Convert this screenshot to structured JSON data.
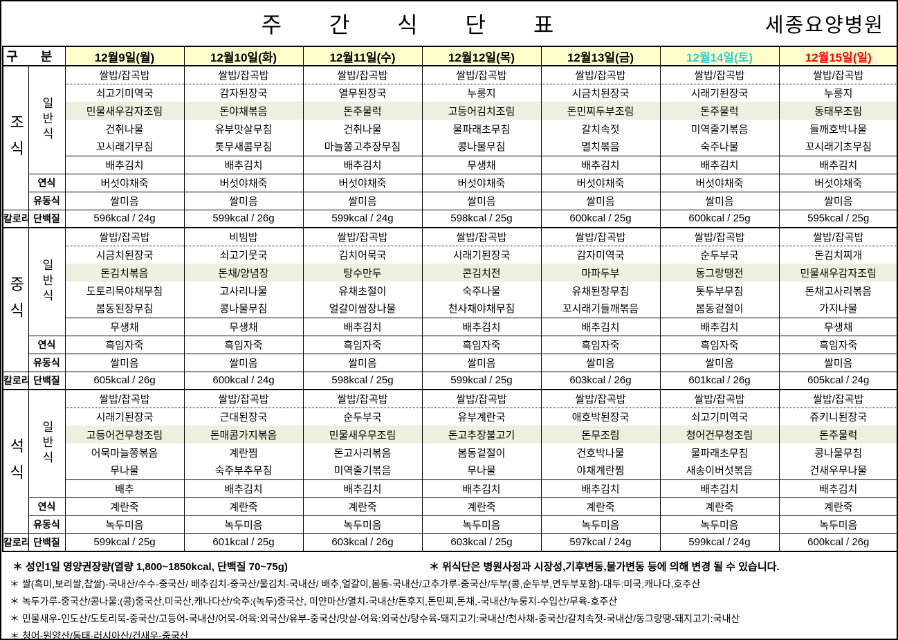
{
  "page": {
    "title": "주 간 식 단 표",
    "hospital": "세종요양병원"
  },
  "colors": {
    "header_bg": "#ffffcc",
    "highlight_bg": "#ebf1de",
    "weekday_text": "#000000",
    "saturday_text": "#33cccc",
    "sunday_text": "#ff0000"
  },
  "header": {
    "gubun": "구 분",
    "days": [
      {
        "label": "12월9일(월)",
        "color": "#000000"
      },
      {
        "label": "12월10일(화)",
        "color": "#000000"
      },
      {
        "label": "12월11일(수)",
        "color": "#000000"
      },
      {
        "label": "12월12일(목)",
        "color": "#000000"
      },
      {
        "label": "12월13일(금)",
        "color": "#000000"
      },
      {
        "label": "12월14일(토)",
        "color": "#33cccc"
      },
      {
        "label": "12월15일(일)",
        "color": "#ff0000"
      }
    ]
  },
  "row_labels": {
    "regular": "일반식",
    "soft": "연식",
    "liquid": "유동식",
    "calorie": "칼로리",
    "protein": "단백질"
  },
  "sections": [
    {
      "meal": "조식",
      "regular": [
        [
          "쌀밥/잡곡밥",
          "쌀밥/잡곡밥",
          "쌀밥/잡곡밥",
          "쌀밥/잡곡밥",
          "쌀밥/잡곡밥",
          "쌀밥/잡곡밥",
          "쌀밥/잡곡밥"
        ],
        [
          "쇠고기미역국",
          "감자된장국",
          "열무된장국",
          "누룽지",
          "시금치된장국",
          "시래기된장국",
          "누룽지"
        ],
        [
          "민물새우감자조림",
          "돈야채볶음",
          "돈주물럭",
          "고등어김치조림",
          "돈민찌두부조림",
          "돈주물럭",
          "동태무조림"
        ],
        [
          "건취나물",
          "유부맛살무침",
          "건취나물",
          "물파래초무침",
          "갈치속젓",
          "미역줄기볶음",
          "들깨호박나물"
        ],
        [
          "꼬시래기무침",
          "톳무새콤무침",
          "마늘쫑고추장무침",
          "콩나물무침",
          "멸치볶음",
          "숙주나물",
          "꼬시래기초무침"
        ],
        [
          "배추김치",
          "배추김치",
          "배추김치",
          "무생채",
          "배추김치",
          "배추김치",
          "배추김치"
        ]
      ],
      "soft": [
        "버섯야채죽",
        "버섯야채죽",
        "버섯야채죽",
        "버섯야채죽",
        "버섯야채죽",
        "버섯야채죽",
        "버섯야채죽"
      ],
      "liquid": [
        "쌀미음",
        "쌀미음",
        "쌀미음",
        "쌀미음",
        "쌀미음",
        "쌀미음",
        "쌀미음"
      ],
      "nutrition": [
        "596kcal / 24g",
        "599kcal / 26g",
        "599kcal / 24g",
        "598kcal / 25g",
        "600kcal / 25g",
        "600kcal / 25g",
        "595kcal / 25g"
      ]
    },
    {
      "meal": "중식",
      "regular": [
        [
          "쌀밥/잡곡밥",
          "비빔밥",
          "쌀밥/잡곡밥",
          "쌀밥/잡곡밥",
          "쌀밥/잡곡밥",
          "쌀밥/잡곡밥",
          "쌀밥/잡곡밥"
        ],
        [
          "시금치된장국",
          "쇠고기뭇국",
          "김치어묵국",
          "시래기된장국",
          "감자미역국",
          "순두부국",
          "돈김치찌개"
        ],
        [
          "돈김치볶음",
          "돈채/양념장",
          "탕수만두",
          "콘김치전",
          "마파두부",
          "동그랑땡전",
          "민물새우감자조림"
        ],
        [
          "도토리묵야채무침",
          "고사리나물",
          "유채초절이",
          "숙주나물",
          "유채된장무침",
          "톳두부무침",
          "돈채고사리볶음"
        ],
        [
          "봄동된장무침",
          "콩나물무침",
          "얼갈이쌈장나물",
          "천사채야채무침",
          "꼬시래기들깨볶음",
          "봄동겉절이",
          "가지나물"
        ],
        [
          "무생채",
          "무생채",
          "배추김치",
          "배추김치",
          "배추김치",
          "배추김치",
          "무생채"
        ]
      ],
      "soft": [
        "흑임자죽",
        "흑임자죽",
        "흑임자죽",
        "흑임자죽",
        "흑임자죽",
        "흑임자죽",
        "흑임자죽"
      ],
      "liquid": [
        "쌀미음",
        "쌀미음",
        "쌀미음",
        "쌀미음",
        "쌀미음",
        "쌀미음",
        "쌀미음"
      ],
      "nutrition": [
        "605kcal / 26g",
        "600kcal / 24g",
        "598kcal / 25g",
        "599kcal / 25g",
        "603kcal / 26g",
        "601kcal / 26g",
        "605kcal / 24g"
      ]
    },
    {
      "meal": "석식",
      "regular": [
        [
          "쌀밥/잡곡밥",
          "쌀밥/잡곡밥",
          "쌀밥/잡곡밥",
          "쌀밥/잡곡밥",
          "쌀밥/잡곡밥",
          "쌀밥/잡곡밥",
          "쌀밥/잡곡밥"
        ],
        [
          "시래기된장국",
          "근대된장국",
          "순두부국",
          "유부계란국",
          "애호박된장국",
          "쇠고기미역국",
          "쥬키니된장국"
        ],
        [
          "고등어건무청조림",
          "돈매콤가지볶음",
          "민물새우무조림",
          "돈고추장불고기",
          "돈무조림",
          "청어건무청조림",
          "돈주물럭"
        ],
        [
          "어묵마늘쫑볶음",
          "계란찜",
          "돈고사리볶음",
          "봄동겉절이",
          "건호박나물",
          "물파래초무침",
          "콩나물무침"
        ],
        [
          "무나물",
          "숙주부추무침",
          "미역줄기볶음",
          "무나물",
          "야채계란찜",
          "새송이버섯볶음",
          "건새우무나물"
        ],
        [
          "배추",
          "배추김치",
          "배추김치",
          "배추김치",
          "배추김치",
          "배추김치",
          "배추김치"
        ]
      ],
      "soft": [
        "계란죽",
        "계란죽",
        "계란죽",
        "계란죽",
        "계란죽",
        "계란죽",
        "계란죽"
      ],
      "liquid": [
        "녹두미음",
        "녹두미음",
        "녹두미음",
        "녹두미음",
        "녹두미음",
        "녹두미음",
        "녹두미음"
      ],
      "nutrition": [
        "599kcal / 25g",
        "601kcal / 25g",
        "603kcal / 26g",
        "603kcal / 25g",
        "597kcal / 24g",
        "599kcal / 24g",
        "600kcal / 26g"
      ]
    }
  ],
  "footnotes": {
    "line1_left": "＊  성인1일 영양권장량(열량 1,800~1850kcal, 단백질 70~75g)",
    "line1_right": "＊ 위식단은 병원사정과 시장성,기후변동,물가변동 등에 의해 변경 될 수 있습니다.",
    "lines": [
      "＊ 쌀(흑미,보리쌀,찹쌀)-국내산/수수-중국산/ 배추김치-중국산/물김치-국내산/ 배추,얼갈이,봄동-국내산/고추가루-중국산/두부(콩,순두부,연두부포함)-대두:미국,캐나다,호주산",
      "＊ 녹두가루-중국산/콩나물:(콩)중국산,미국산,캐나다산/숙주:(녹두)중국산, 미얀마산/멸치-국내산/돈후지,돈민찌,돈채,-국내산/누룽지-수입산/무육-호주산",
      "＊ 민물새우-인도산/도토리묵-중국산/고등어-국내산/어묵-어육:외국산/유부-중국산/맛살-어육:외국산/탕수육-돼지고기:국내산/천사채-중국산/갈치속젓-국내산/동그랑땡-돼지고기:국내산",
      "＊ 청어-원양산/동태-러시아산/건새우-중국산"
    ]
  }
}
